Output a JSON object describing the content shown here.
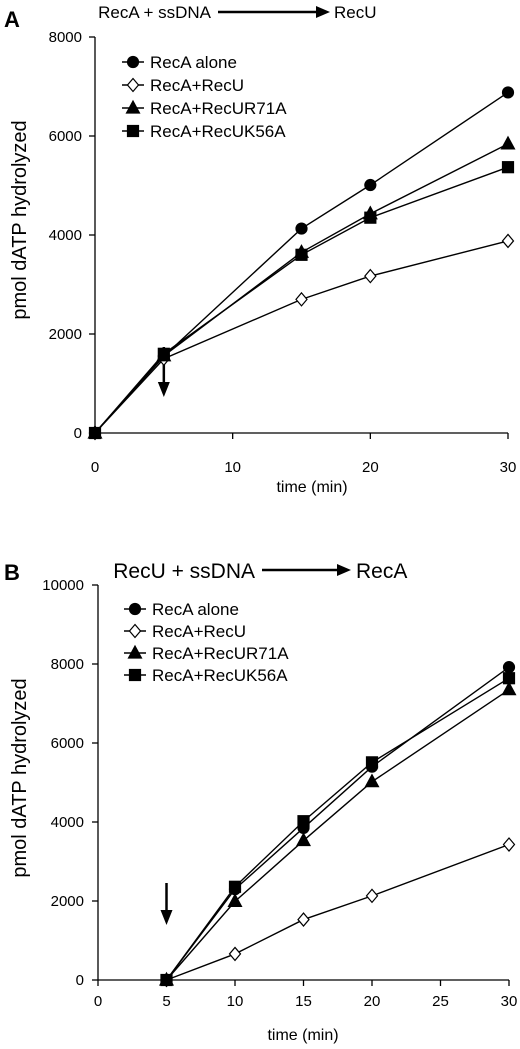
{
  "chart_data": [
    {
      "type": "line",
      "panel_label": "A",
      "header": {
        "left": "RecA + ssDNA",
        "right": "RecU"
      },
      "xlabel": "time (min)",
      "ylabel": "pmol dATP hydrolyzed",
      "xlim": [
        0,
        30
      ],
      "ylim": [
        0,
        8000
      ],
      "xticks": [
        0,
        10,
        20,
        30
      ],
      "yticks": [
        0,
        2000,
        4000,
        6000,
        8000
      ],
      "grid": false,
      "legend_position": "top-left",
      "annotation": {
        "type": "arrow",
        "x": 5,
        "meaning": "down arrow marking addition time"
      },
      "series": [
        {
          "name": "RecA alone",
          "marker": "circle",
          "fill": "#000000",
          "x": [
            0,
            5,
            15,
            20,
            30
          ],
          "y": [
            0,
            1550,
            4130,
            5010,
            6880
          ]
        },
        {
          "name": "RecA+RecU",
          "marker": "diamond",
          "fill": "#ffffff",
          "x": [
            0,
            5,
            15,
            20,
            30
          ],
          "y": [
            0,
            1500,
            2700,
            3170,
            3880
          ]
        },
        {
          "name": "RecA+RecUR71A",
          "marker": "triangle",
          "fill": "#000000",
          "x": [
            0,
            5,
            15,
            20,
            30
          ],
          "y": [
            0,
            1560,
            3650,
            4430,
            5840
          ]
        },
        {
          "name": "RecA+RecUK56A",
          "marker": "square",
          "fill": "#000000",
          "x": [
            0,
            5,
            15,
            20,
            30
          ],
          "y": [
            0,
            1600,
            3600,
            4350,
            5370
          ]
        }
      ]
    },
    {
      "type": "line",
      "panel_label": "B",
      "header": {
        "left": "RecU + ssDNA",
        "right": "RecA"
      },
      "xlabel": "time (min)",
      "ylabel": "pmol dATP hydrolyzed",
      "xlim": [
        0,
        30
      ],
      "ylim": [
        0,
        10000
      ],
      "xticks": [
        0,
        5,
        10,
        15,
        20,
        25,
        30
      ],
      "yticks": [
        0,
        2000,
        4000,
        6000,
        8000,
        10000
      ],
      "grid": false,
      "legend_position": "top-left",
      "annotation": {
        "type": "arrow",
        "x": 5,
        "meaning": "down arrow marking addition time"
      },
      "series": [
        {
          "name": "RecA alone",
          "marker": "circle",
          "fill": "#000000",
          "x": [
            5,
            10,
            15,
            20,
            30
          ],
          "y": [
            0,
            2300,
            3850,
            5400,
            7920
          ]
        },
        {
          "name": "RecA+RecU",
          "marker": "diamond",
          "fill": "#ffffff",
          "x": [
            5,
            10,
            15,
            20,
            30
          ],
          "y": [
            0,
            660,
            1530,
            2130,
            3430
          ]
        },
        {
          "name": "RecA+RecUR71A",
          "marker": "triangle",
          "fill": "#000000",
          "x": [
            5,
            10,
            15,
            20,
            30
          ],
          "y": [
            0,
            1990,
            3530,
            5020,
            7350
          ]
        },
        {
          "name": "RecA+RecUK56A",
          "marker": "square",
          "fill": "#000000",
          "x": [
            5,
            10,
            15,
            20,
            30
          ],
          "y": [
            0,
            2360,
            4020,
            5510,
            7640
          ]
        }
      ]
    }
  ]
}
